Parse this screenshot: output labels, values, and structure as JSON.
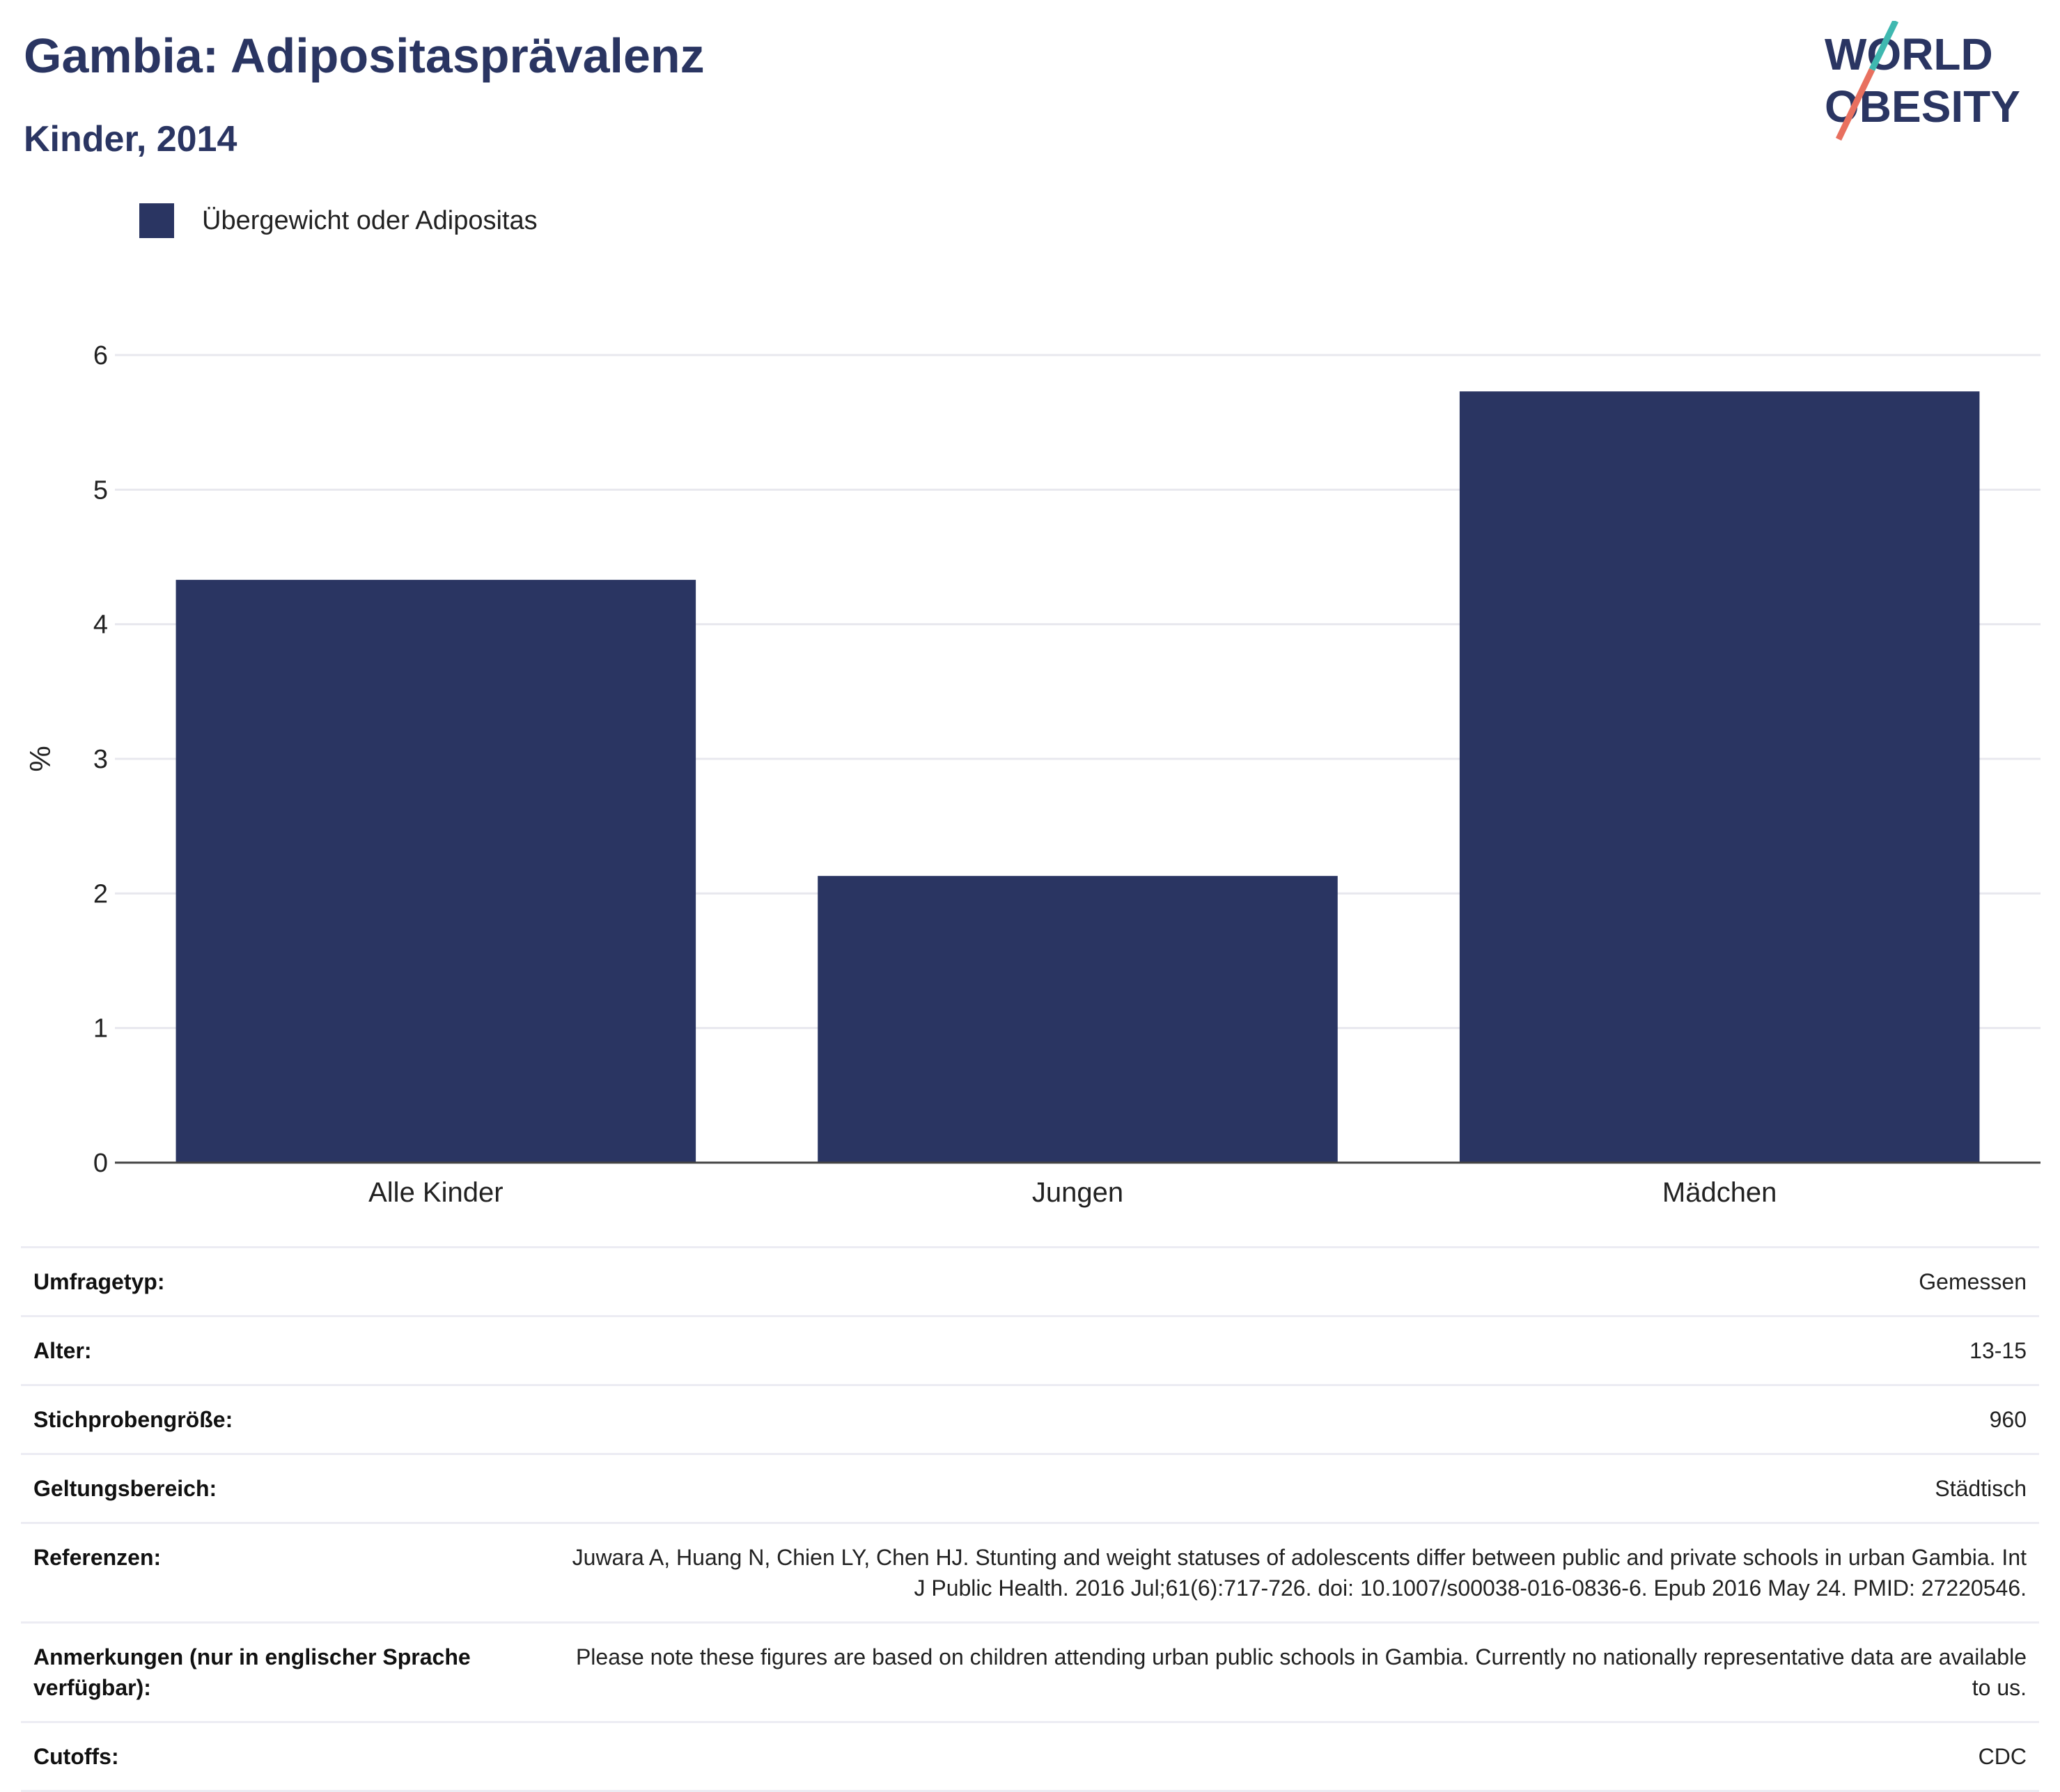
{
  "header": {
    "title": "Gambia: Adipositasprävalenz",
    "subtitle": "Kinder, 2014"
  },
  "logo": {
    "line1": "WORLD",
    "line2": "OBESITY",
    "colors": {
      "text": "#2a3562",
      "slash_top": "#3fb8b0",
      "slash_bottom": "#e8705f"
    }
  },
  "legend": {
    "label": "Übergewicht oder Adipositas",
    "color": "#2a3562"
  },
  "chart_data": {
    "type": "bar",
    "categories": [
      "Alle Kinder",
      "Jungen",
      "Mädchen"
    ],
    "series": [
      {
        "name": "Übergewicht oder Adipositas",
        "values": [
          4.33,
          2.13,
          5.73
        ],
        "color": "#2a3562"
      }
    ],
    "ylabel": "%",
    "xlabel": "",
    "ylim": [
      0,
      6
    ],
    "yticks": [
      0,
      1,
      2,
      3,
      4,
      5,
      6
    ],
    "grid": true,
    "legend_position": "top-left"
  },
  "info_rows": [
    {
      "label": "Umfragetyp:",
      "value": "Gemessen"
    },
    {
      "label": "Alter:",
      "value": "13-15"
    },
    {
      "label": "Stichprobengröße:",
      "value": "960"
    },
    {
      "label": "Geltungsbereich:",
      "value": "Städtisch"
    },
    {
      "label": "Referenzen:",
      "value": "Juwara A, Huang N, Chien LY, Chen HJ. Stunting and weight statuses of adolescents differ between public and private schools in urban Gambia. Int J Public Health. 2016 Jul;61(6):717-726. doi: 10.1007/s00038-016-0836-6. Epub 2016 May 24. PMID: 27220546."
    },
    {
      "label": "Anmerkungen (nur in englischer Sprache verfügbar):",
      "value": "Please note these figures are based on children attending urban public schools in Gambia. Currently no nationally representative data are available to us."
    },
    {
      "label": "Cutoffs:",
      "value": "CDC"
    }
  ]
}
